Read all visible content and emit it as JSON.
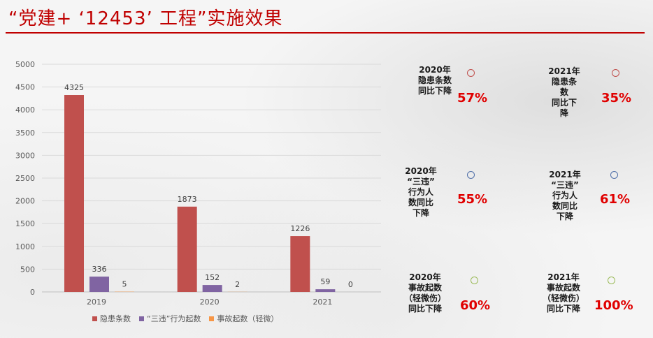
{
  "title": "“党建+ ‘12453’ 工程”实施效果",
  "colors": {
    "title": "#c00000",
    "series1": "#c0504d",
    "series2": "#8064a2",
    "series3": "#f79646",
    "stat_value": "#e00000"
  },
  "chart_data": {
    "type": "bar",
    "categories": [
      "2019",
      "2020",
      "2021"
    ],
    "series": [
      {
        "name": "隐患条数",
        "values": [
          4325,
          1873,
          1226
        ]
      },
      {
        "name": "“三违”行为起数",
        "values": [
          336,
          152,
          59
        ]
      },
      {
        "name": "事故起数（轻微）",
        "values": [
          5,
          2,
          0
        ]
      }
    ],
    "ylim": [
      0,
      5000
    ],
    "yticks": [
      0,
      500,
      1000,
      1500,
      2000,
      2500,
      3000,
      3500,
      4000,
      4500,
      5000
    ],
    "grid": true,
    "legend": "bottom"
  },
  "stats": [
    {
      "label": "2020年\n隐患条数\n同比下降",
      "value": "57%",
      "ring": "#c0504d"
    },
    {
      "label": "2021年\n隐患条\n数\n同比下\n降",
      "value": "35%",
      "ring": "#c0504d"
    },
    {
      "label": "2020年\n“三违”\n行为人\n数同比\n下降",
      "value": "55%",
      "ring": "#4f6fa8"
    },
    {
      "label": "2021年\n“三违”\n行为人\n数同比\n下降",
      "value": "61%",
      "ring": "#4f6fa8"
    },
    {
      "label": "2020年\n事故起数\n（轻微伤）\n同比下降",
      "value": "60%",
      "ring": "#9bbb59"
    },
    {
      "label": "2021年\n事故起数\n（轻微伤）\n同比下降",
      "value": "100%",
      "ring": "#9bbb59"
    }
  ]
}
